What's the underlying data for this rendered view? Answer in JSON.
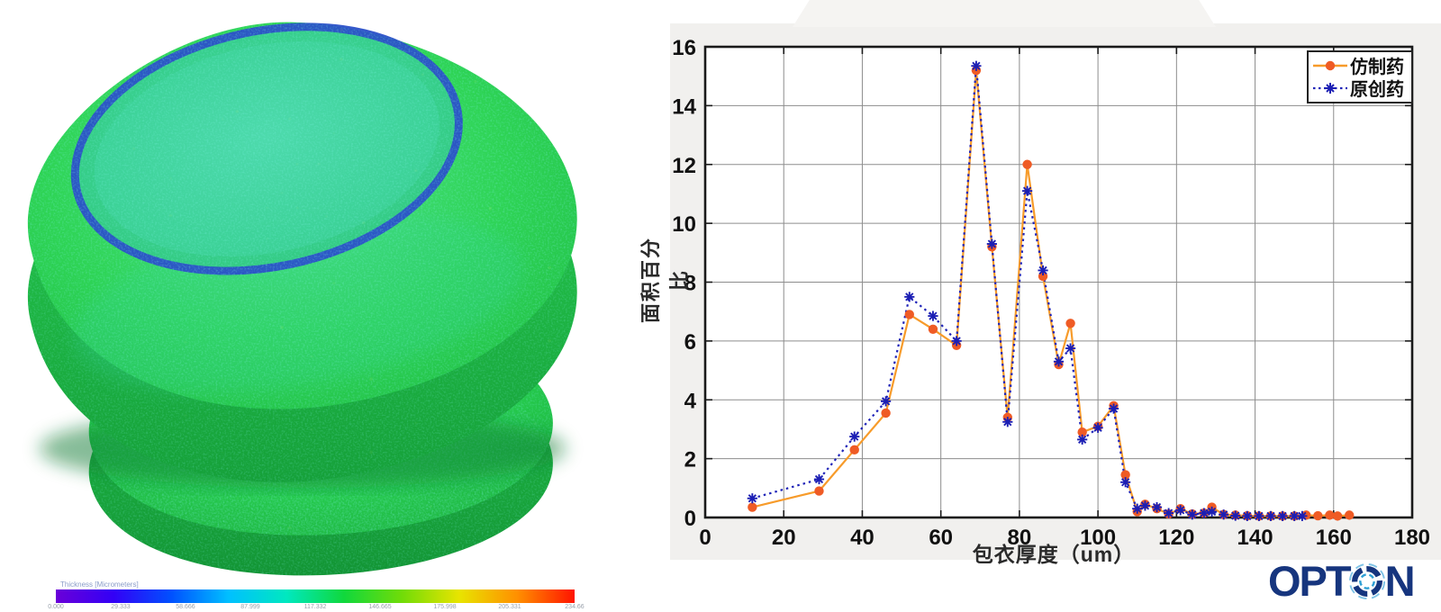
{
  "left_panel": {
    "colorbar": {
      "label": "Thickness [Micrometers]",
      "ticks": [
        "0.000",
        "29.333",
        "58.666",
        "87.999",
        "117.332",
        "146.665",
        "175.998",
        "205.331",
        "234.66"
      ],
      "gradient": [
        "#6a00d8",
        "#3300f6",
        "#0050ff",
        "#00c0ff",
        "#00e8c0",
        "#10d83c",
        "#70dc08",
        "#e8e400",
        "#ff9000",
        "#ff1400"
      ]
    }
  },
  "chart_data": {
    "type": "line",
    "title": "",
    "xlabel": "包衣厚度（um）",
    "ylabel": "面积百分比",
    "xlim": [
      0,
      180
    ],
    "ylim": [
      0,
      16
    ],
    "x_ticks": [
      0,
      20,
      40,
      60,
      80,
      100,
      120,
      140,
      160,
      180
    ],
    "y_ticks": [
      0,
      2,
      4,
      6,
      8,
      10,
      12,
      14,
      16
    ],
    "grid": true,
    "legend_position": "top-right",
    "series": [
      {
        "name": "仿制药",
        "line": "solid",
        "line_color": "#f79b2a",
        "marker": "circle",
        "marker_color": "#ef5b25",
        "x": [
          12,
          29,
          38,
          46,
          52,
          58,
          64,
          69,
          73,
          77,
          82,
          86,
          90,
          93,
          96,
          100,
          104,
          107,
          110,
          112,
          115,
          118,
          121,
          124,
          127,
          129,
          132,
          135,
          138,
          141,
          144,
          147,
          150,
          153,
          156,
          159,
          161,
          164
        ],
        "y": [
          0.35,
          0.9,
          2.3,
          3.55,
          6.9,
          6.4,
          5.85,
          15.2,
          9.2,
          3.4,
          12.0,
          8.2,
          5.2,
          6.6,
          2.9,
          3.1,
          3.8,
          1.45,
          0.2,
          0.45,
          0.3,
          0.12,
          0.3,
          0.12,
          0.15,
          0.35,
          0.1,
          0.08,
          0.06,
          0.05,
          0.05,
          0.05,
          0.05,
          0.08,
          0.06,
          0.08,
          0.05,
          0.08
        ]
      },
      {
        "name": "原创药",
        "line": "dotted",
        "line_color": "#2024b8",
        "marker": "asterisk",
        "marker_color": "#1c1fb4",
        "x": [
          12,
          29,
          38,
          46,
          52,
          58,
          64,
          69,
          73,
          77,
          82,
          86,
          90,
          93,
          96,
          100,
          104,
          107,
          110,
          112,
          115,
          118,
          121,
          124,
          127,
          129,
          132,
          135,
          138,
          141,
          144,
          147,
          150,
          152
        ],
        "y": [
          0.65,
          1.3,
          2.75,
          3.95,
          7.5,
          6.85,
          6.0,
          15.35,
          9.3,
          3.25,
          11.1,
          8.4,
          5.3,
          5.75,
          2.65,
          3.05,
          3.7,
          1.2,
          0.3,
          0.4,
          0.35,
          0.15,
          0.25,
          0.1,
          0.15,
          0.2,
          0.1,
          0.06,
          0.05,
          0.05,
          0.05,
          0.05,
          0.05,
          0.05
        ]
      }
    ]
  },
  "logo": {
    "full_name": "OPTON",
    "text_left": "OPT",
    "text_right": "N",
    "color": "#16357e",
    "icon_color": "#2e9fd4"
  }
}
